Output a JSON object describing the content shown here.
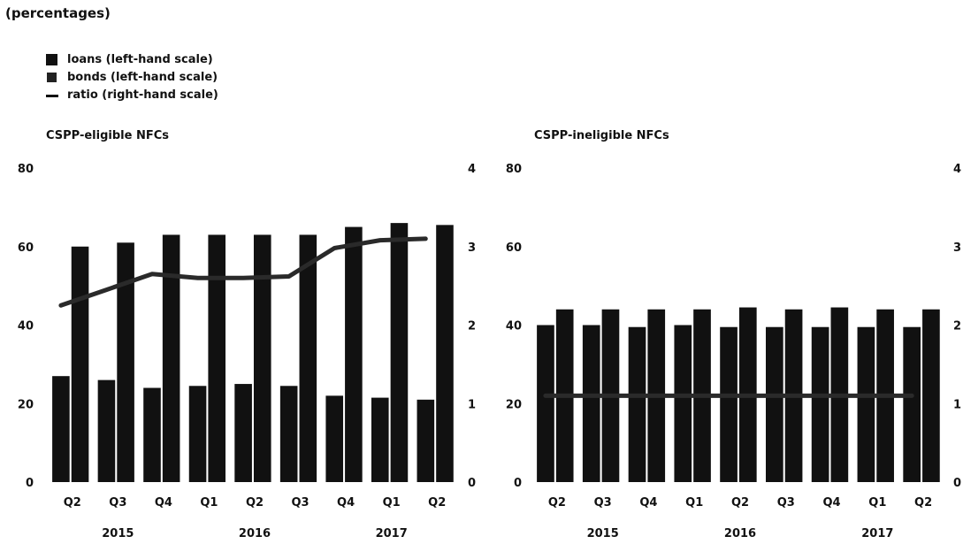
{
  "unit_note": "(percentages)",
  "legend": [
    {
      "label": "loans (left-hand scale)",
      "kind": "bar"
    },
    {
      "label": "bonds (left-hand scale)",
      "kind": "bar"
    },
    {
      "label": "ratio (right-hand scale)",
      "kind": "line"
    }
  ],
  "colors": {
    "loans": "#111111",
    "bonds": "#111111",
    "ratio": "#2a2a2a"
  },
  "chart_data": [
    {
      "type": "bar",
      "title": "CSPP-eligible NFCs",
      "categories": [
        "Q2",
        "Q3",
        "Q4",
        "Q1",
        "Q2",
        "Q3",
        "Q4",
        "Q1",
        "Q2"
      ],
      "years": [
        {
          "label": "2015",
          "category_index": 1
        },
        {
          "label": "2016",
          "category_index": 4
        },
        {
          "label": "2017",
          "category_index": 7
        }
      ],
      "series": [
        {
          "name": "loans (left-hand scale)",
          "axis": "left",
          "values": [
            27,
            26,
            24,
            24.5,
            25,
            24.5,
            22,
            21.5,
            21
          ]
        },
        {
          "name": "bonds (left-hand scale)",
          "axis": "left",
          "values": [
            60,
            61,
            63,
            63,
            63,
            63,
            65,
            66,
            65.5
          ]
        },
        {
          "name": "ratio (right-hand scale)",
          "axis": "right",
          "type": "line",
          "values": [
            2.25,
            2.45,
            2.65,
            2.6,
            2.6,
            2.62,
            2.98,
            3.08,
            3.1
          ]
        }
      ],
      "ylim_left": [
        0,
        80
      ],
      "yticks_left": [
        0,
        20,
        40,
        60,
        80
      ],
      "ylim_right": [
        0,
        4
      ],
      "yticks_right": [
        0,
        1,
        2,
        3,
        4
      ]
    },
    {
      "type": "bar",
      "title": "CSPP-ineligible NFCs",
      "categories": [
        "Q2",
        "Q3",
        "Q4",
        "Q1",
        "Q2",
        "Q3",
        "Q4",
        "Q1",
        "Q2"
      ],
      "years": [
        {
          "label": "2015",
          "category_index": 1
        },
        {
          "label": "2016",
          "category_index": 4
        },
        {
          "label": "2017",
          "category_index": 7
        }
      ],
      "series": [
        {
          "name": "loans (left-hand scale)",
          "axis": "left",
          "values": [
            40,
            40,
            39.5,
            40,
            39.5,
            39.5,
            39.5,
            39.5,
            39.5
          ]
        },
        {
          "name": "bonds (left-hand scale)",
          "axis": "left",
          "values": [
            44,
            44,
            44,
            44,
            44.5,
            44,
            44.5,
            44,
            44
          ]
        },
        {
          "name": "ratio (right-hand scale)",
          "axis": "right",
          "type": "line",
          "values": [
            1.1,
            1.1,
            1.1,
            1.1,
            1.1,
            1.1,
            1.1,
            1.1,
            1.1
          ]
        }
      ],
      "ylim_left": [
        0,
        80
      ],
      "yticks_left": [
        0,
        20,
        40,
        60,
        80
      ],
      "ylim_right": [
        0,
        4
      ],
      "yticks_right": [
        0,
        1,
        2,
        3,
        4
      ]
    }
  ]
}
